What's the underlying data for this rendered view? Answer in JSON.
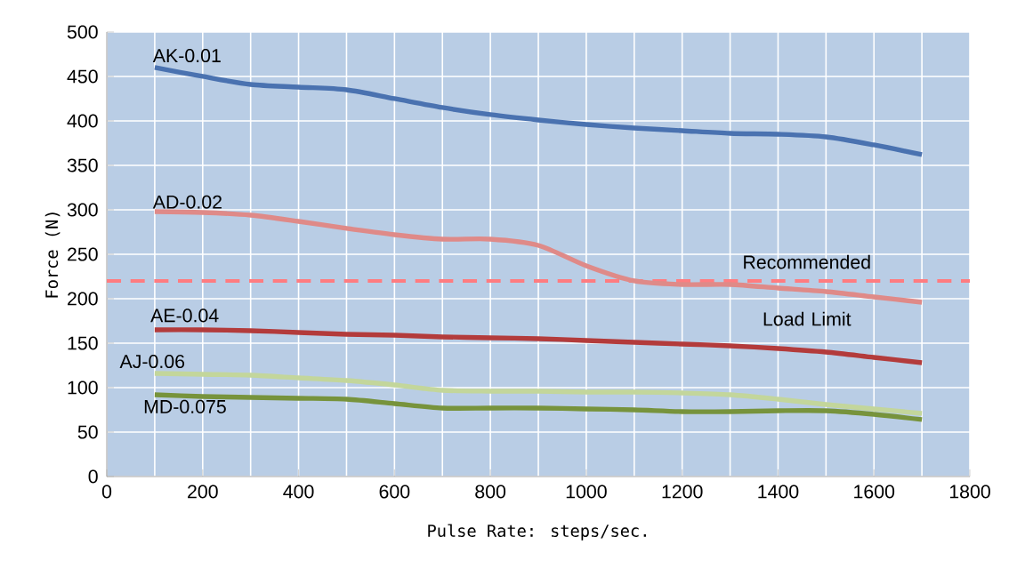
{
  "chart_data": {
    "type": "line",
    "xlabel": "Pulse Rate: steps/sec.",
    "ylabel": "Force (N)",
    "x": [
      100,
      200,
      300,
      400,
      500,
      600,
      700,
      800,
      900,
      1000,
      1100,
      1200,
      1300,
      1400,
      1500,
      1600,
      1700
    ],
    "series": [
      {
        "name": "AK-0.01",
        "color": "#4a72b0",
        "values": [
          460,
          450,
          441,
          438,
          435,
          425,
          415,
          407,
          401,
          396,
          392,
          389,
          386,
          385,
          382,
          373,
          362
        ]
      },
      {
        "name": "AD-0.02",
        "color": "#df8a88",
        "values": [
          298,
          297,
          294,
          287,
          279,
          272,
          267,
          267,
          260,
          237,
          220,
          216,
          216,
          212,
          208,
          202,
          196
        ]
      },
      {
        "name": "AE-0.04",
        "color": "#b33b3b",
        "values": [
          165,
          165,
          164,
          162,
          160,
          159,
          157,
          156,
          155,
          153,
          151,
          149,
          147,
          144,
          140,
          134,
          128
        ]
      },
      {
        "name": "AJ-0.06",
        "color": "#c3d69b",
        "values": [
          116,
          115,
          114,
          111,
          108,
          103,
          97,
          96,
          96,
          95,
          95,
          94,
          92,
          87,
          81,
          76,
          71
        ]
      },
      {
        "name": "MD-0.075",
        "color": "#77933c",
        "values": [
          92,
          90,
          89,
          88,
          87,
          82,
          77,
          77,
          77,
          76,
          75,
          73,
          73,
          74,
          74,
          70,
          64
        ]
      }
    ],
    "ref_lines": [
      {
        "axis": "y",
        "value": 220,
        "label": "Recommended Load Limit",
        "color": "#ff7c80",
        "line_style": "dashed"
      }
    ],
    "xlim": [
      0,
      1800
    ],
    "xticks": [
      0,
      200,
      400,
      600,
      800,
      1000,
      1200,
      1400,
      1600,
      1800
    ],
    "ylim": [
      0,
      500
    ],
    "yticks": [
      0,
      50,
      100,
      150,
      200,
      250,
      300,
      350,
      400,
      450,
      500
    ],
    "grid": true
  }
}
